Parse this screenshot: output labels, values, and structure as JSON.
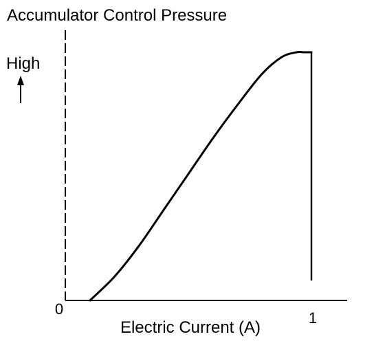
{
  "chart_data": {
    "type": "line",
    "title": "Accumulator Control Pressure",
    "ylabel": "High",
    "xlabel": "Electric Current (A)",
    "x_tick_labels": [
      "0",
      "1"
    ],
    "xlim": [
      0,
      1.14
    ],
    "ylim": [
      0,
      1.0
    ],
    "grid": false,
    "legend": "none",
    "series": [
      {
        "x": [
          0.1,
          0.2,
          0.3,
          0.4,
          0.5,
          0.6,
          0.7,
          0.8,
          0.88,
          0.94,
          0.97,
          1.0
        ],
        "y": [
          0.0,
          0.1,
          0.23,
          0.38,
          0.53,
          0.68,
          0.82,
          0.95,
          1.02,
          1.04,
          1.04,
          1.04
        ]
      }
    ],
    "colors": {
      "line": "#000000",
      "background": "#ffffff"
    }
  }
}
